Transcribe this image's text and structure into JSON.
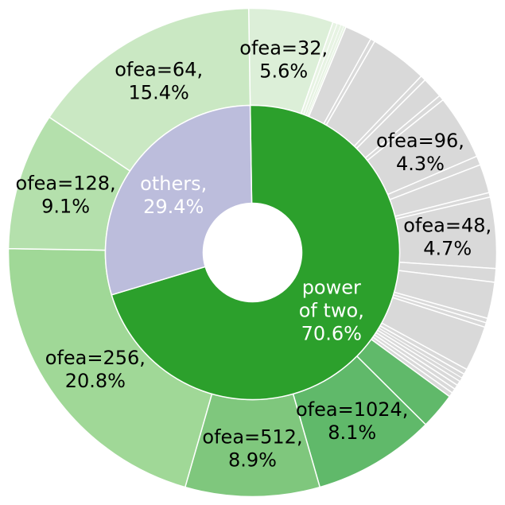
{
  "chart_data": {
    "type": "pie",
    "subtype": "nested-donut",
    "inner": [
      {
        "label": "power\nof two,\n70.6%",
        "name": "power of two",
        "value": 70.6,
        "color": "#2ca02c",
        "text_color": "#ffffff"
      },
      {
        "label": "others,\n29.4%",
        "name": "others",
        "value": 29.4,
        "color": "#bcbddc",
        "text_color": "#ffffff"
      }
    ],
    "outer": [
      {
        "label": "ofea=32,\n5.6%",
        "value": 5.6,
        "color": "#dcefd8"
      },
      {
        "value": 0.3,
        "color": "#e7f3e3"
      },
      {
        "value": 0.25,
        "color": "#e7f3e3"
      },
      {
        "value": 0.2,
        "color": "#e7f3e3"
      },
      {
        "value": 0.15,
        "color": "#e7f3e3"
      },
      {
        "value": 1.8,
        "color": "#d9d9d9"
      },
      {
        "value": 0.3,
        "color": "#d9d9d9"
      },
      {
        "value": 3.8,
        "color": "#d9d9d9"
      },
      {
        "value": 0.35,
        "color": "#d9d9d9"
      },
      {
        "value": 1.4,
        "color": "#d9d9d9"
      },
      {
        "value": 0.35,
        "color": "#d9d9d9"
      },
      {
        "label": "ofea=96,\n4.3%",
        "value": 4.3,
        "color": "#d9d9d9"
      },
      {
        "value": 0.6,
        "color": "#d9d9d9"
      },
      {
        "value": 1.9,
        "color": "#d9d9d9"
      },
      {
        "value": 0.3,
        "color": "#d9d9d9"
      },
      {
        "label": "ofea=48,\n4.7%",
        "value": 4.7,
        "color": "#d9d9d9"
      },
      {
        "value": 0.9,
        "color": "#d9d9d9"
      },
      {
        "value": 2.4,
        "color": "#d9d9d9"
      },
      {
        "value": 0.3,
        "color": "#d9d9d9"
      },
      {
        "value": 0.3,
        "color": "#d9d9d9"
      },
      {
        "value": 3.0,
        "color": "#d9d9d9"
      },
      {
        "value": 0.35,
        "color": "#d9d9d9"
      },
      {
        "value": 0.3,
        "color": "#d9d9d9"
      },
      {
        "value": 0.25,
        "color": "#d9d9d9"
      },
      {
        "value": 0.3,
        "color": "#d9d9d9"
      },
      {
        "value": 0.3,
        "color": "#d9d9d9"
      },
      {
        "value": 0.3,
        "color": "#d9d9d9"
      },
      {
        "value": 0.3,
        "color": "#d9d9d9"
      },
      {
        "value": 2.4,
        "color": "#60b96a"
      },
      {
        "label": "ofea=1024,\n8.1%",
        "value": 8.1,
        "color": "#60b96a"
      },
      {
        "label": "ofea=512,\n8.9%",
        "value": 8.9,
        "color": "#7fc77d"
      },
      {
        "label": "ofea=256,\n20.8%",
        "value": 20.8,
        "color": "#a0d897"
      },
      {
        "label": "ofea=128,\n9.1%",
        "value": 9.1,
        "color": "#b4e0ac"
      },
      {
        "label": "ofea=64,\n15.4%",
        "value": 15.4,
        "color": "#cae8c3"
      }
    ],
    "start_angle_deg": 90.9,
    "direction": "clockwise",
    "title": "",
    "legend": "none"
  }
}
